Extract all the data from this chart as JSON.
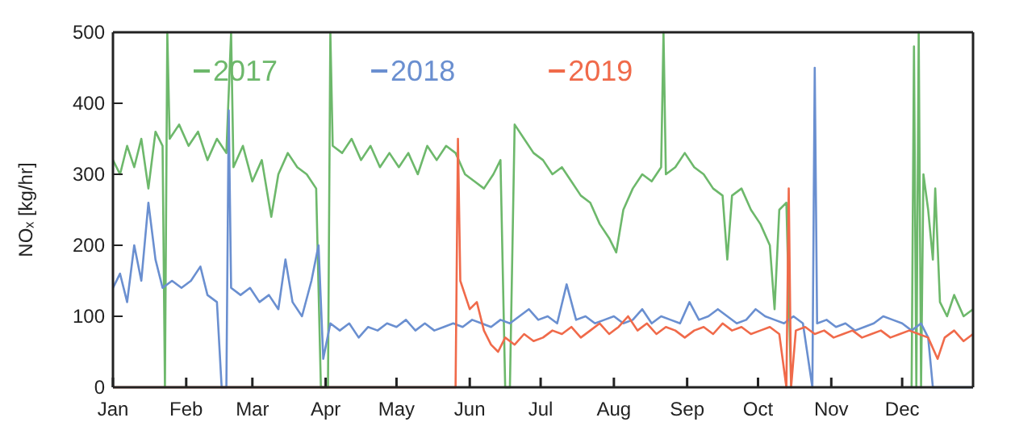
{
  "chart_data": {
    "type": "line",
    "ylabel": "NOₓ [kg/hr]",
    "xlim": [
      "--01-01",
      "--12-31"
    ],
    "xticks": [
      {
        "value": "--01-01",
        "label": "Jan"
      },
      {
        "value": "--02-01",
        "label": "Feb"
      },
      {
        "value": "--03-01",
        "label": "Mar"
      },
      {
        "value": "--04-01",
        "label": "Apr"
      },
      {
        "value": "--05-01",
        "label": "May"
      },
      {
        "value": "--06-01",
        "label": "Jun"
      },
      {
        "value": "--07-01",
        "label": "Jul"
      },
      {
        "value": "--08-01",
        "label": "Aug"
      },
      {
        "value": "--09-01",
        "label": "Sep"
      },
      {
        "value": "--10-01",
        "label": "Oct"
      },
      {
        "value": "--11-01",
        "label": "Nov"
      },
      {
        "value": "--12-01",
        "label": "Dec"
      }
    ],
    "ylim": [
      0,
      500
    ],
    "yticks": [
      0,
      100,
      200,
      300,
      400,
      500
    ],
    "legend": "top left",
    "grid": false,
    "line_style": "solid",
    "marker": "none",
    "series": [
      {
        "name": "2017",
        "color": "#6db86b",
        "x": [
          "--01-01",
          "--01-04",
          "--01-07",
          "--01-10",
          "--01-13",
          "--01-16",
          "--01-19",
          "--01-22",
          "--01-23",
          "--01-24",
          "--01-25",
          "--01-29",
          "--02-02",
          "--02-06",
          "--02-10",
          "--02-14",
          "--02-18",
          "--02-20",
          "--02-21",
          "--02-25",
          "--03-01",
          "--03-05",
          "--03-09",
          "--03-12",
          "--03-16",
          "--03-20",
          "--03-24",
          "--03-28",
          "--03-30",
          "--04-02",
          "--04-03",
          "--04-04",
          "--04-08",
          "--04-12",
          "--04-16",
          "--04-20",
          "--04-24",
          "--04-28",
          "--05-02",
          "--05-06",
          "--05-10",
          "--05-14",
          "--05-18",
          "--05-22",
          "--05-26",
          "--05-30",
          "--06-03",
          "--06-07",
          "--06-11",
          "--06-14",
          "--06-16",
          "--06-18",
          "--06-20",
          "--06-24",
          "--06-28",
          "--07-02",
          "--07-06",
          "--07-10",
          "--07-14",
          "--07-18",
          "--07-22",
          "--07-26",
          "--07-30",
          "--08-02",
          "--08-05",
          "--08-09",
          "--08-13",
          "--08-17",
          "--08-21",
          "--08-22",
          "--08-23",
          "--08-27",
          "--08-31",
          "--09-04",
          "--09-08",
          "--09-12",
          "--09-16",
          "--09-18",
          "--09-20",
          "--09-24",
          "--09-28",
          "--10-02",
          "--10-06",
          "--10-08",
          "--10-10",
          "--10-13",
          "--10-15",
          "--10-20",
          "--12-05",
          "--12-06",
          "--12-07",
          "--12-08",
          "--12-09",
          "--12-10",
          "--12-12",
          "--12-14",
          "--12-15",
          "--12-17",
          "--12-20",
          "--12-23",
          "--12-27",
          "--12-31"
        ],
        "values": [
          320,
          300,
          340,
          310,
          350,
          280,
          360,
          340,
          0,
          500,
          350,
          370,
          340,
          360,
          320,
          350,
          330,
          500,
          310,
          340,
          290,
          320,
          240,
          300,
          330,
          310,
          300,
          280,
          0,
          0,
          500,
          340,
          330,
          350,
          320,
          340,
          310,
          330,
          310,
          330,
          300,
          340,
          320,
          340,
          330,
          300,
          290,
          280,
          300,
          320,
          0,
          0,
          370,
          350,
          330,
          320,
          300,
          310,
          290,
          270,
          260,
          230,
          210,
          190,
          250,
          280,
          300,
          290,
          310,
          500,
          300,
          310,
          330,
          310,
          300,
          280,
          270,
          180,
          270,
          280,
          250,
          230,
          200,
          110,
          250,
          260,
          0,
          null,
          0,
          480,
          0,
          500,
          0,
          300,
          250,
          180,
          280,
          120,
          100,
          130,
          100,
          110
        ]
      },
      {
        "name": "2018",
        "color": "#6a8fd0",
        "x": [
          "--01-01",
          "--01-04",
          "--01-07",
          "--01-10",
          "--01-13",
          "--01-16",
          "--01-19",
          "--01-22",
          "--01-26",
          "--01-30",
          "--02-03",
          "--02-07",
          "--02-10",
          "--02-14",
          "--02-16",
          "--02-18",
          "--02-19",
          "--02-20",
          "--02-24",
          "--02-28",
          "--03-04",
          "--03-08",
          "--03-12",
          "--03-15",
          "--03-18",
          "--03-22",
          "--03-26",
          "--03-29",
          "--03-31",
          "--04-03",
          "--04-07",
          "--04-11",
          "--04-15",
          "--04-19",
          "--04-23",
          "--04-27",
          "--05-01",
          "--05-05",
          "--05-09",
          "--05-13",
          "--05-17",
          "--05-21",
          "--05-25",
          "--05-29",
          "--06-02",
          "--06-06",
          "--06-10",
          "--06-14",
          "--06-18",
          "--06-22",
          "--06-26",
          "--06-30",
          "--07-04",
          "--07-08",
          "--07-12",
          "--07-16",
          "--07-20",
          "--07-24",
          "--07-28",
          "--08-01",
          "--08-05",
          "--08-09",
          "--08-13",
          "--08-17",
          "--08-21",
          "--08-25",
          "--08-29",
          "--09-02",
          "--09-06",
          "--09-10",
          "--09-14",
          "--09-18",
          "--09-22",
          "--09-26",
          "--09-30",
          "--10-04",
          "--10-08",
          "--10-12",
          "--10-16",
          "--10-20",
          "--10-24",
          "--10-25",
          "--10-26",
          "--10-30",
          "--11-03",
          "--11-07",
          "--11-11",
          "--11-15",
          "--11-19",
          "--11-23",
          "--11-27",
          "--12-01",
          "--12-05",
          "--12-09",
          "--12-12",
          "--12-14",
          "--12-31"
        ],
        "values": [
          140,
          160,
          120,
          200,
          150,
          260,
          180,
          140,
          150,
          140,
          150,
          170,
          130,
          120,
          0,
          0,
          390,
          140,
          130,
          140,
          120,
          130,
          110,
          180,
          120,
          100,
          150,
          200,
          40,
          90,
          80,
          90,
          70,
          85,
          80,
          90,
          85,
          95,
          80,
          90,
          80,
          85,
          90,
          85,
          95,
          90,
          85,
          95,
          90,
          100,
          110,
          95,
          100,
          90,
          145,
          95,
          100,
          90,
          95,
          100,
          90,
          95,
          110,
          90,
          100,
          95,
          90,
          120,
          95,
          100,
          110,
          100,
          90,
          95,
          110,
          100,
          95,
          90,
          100,
          90,
          0,
          450,
          90,
          95,
          85,
          90,
          80,
          85,
          90,
          100,
          95,
          90,
          80,
          90,
          70,
          0,
          0
        ]
      },
      {
        "name": "2019",
        "color": "#f06a4a",
        "x": [
          "--01-01",
          "--05-26",
          "--05-27",
          "--05-28",
          "--06-01",
          "--06-04",
          "--06-07",
          "--06-10",
          "--06-13",
          "--06-16",
          "--06-20",
          "--06-24",
          "--06-28",
          "--07-02",
          "--07-06",
          "--07-10",
          "--07-14",
          "--07-18",
          "--07-22",
          "--07-26",
          "--07-30",
          "--08-03",
          "--08-07",
          "--08-11",
          "--08-15",
          "--08-19",
          "--08-23",
          "--08-27",
          "--08-31",
          "--09-04",
          "--09-08",
          "--09-12",
          "--09-16",
          "--09-20",
          "--09-24",
          "--09-28",
          "--10-02",
          "--10-06",
          "--10-10",
          "--10-13",
          "--10-14",
          "--10-15",
          "--10-17",
          "--10-21",
          "--10-25",
          "--10-29",
          "--11-02",
          "--11-06",
          "--11-10",
          "--11-14",
          "--11-18",
          "--11-22",
          "--11-26",
          "--11-30",
          "--12-04",
          "--12-08",
          "--12-12",
          "--12-16",
          "--12-19",
          "--12-23",
          "--12-27",
          "--12-31"
        ],
        "values": [
          0,
          0,
          350,
          150,
          110,
          120,
          80,
          60,
          50,
          70,
          60,
          75,
          65,
          70,
          80,
          75,
          85,
          70,
          80,
          90,
          75,
          85,
          100,
          80,
          90,
          75,
          85,
          80,
          70,
          80,
          85,
          75,
          90,
          80,
          85,
          75,
          80,
          85,
          75,
          0,
          280,
          0,
          80,
          85,
          75,
          80,
          70,
          75,
          80,
          70,
          75,
          80,
          70,
          75,
          80,
          75,
          70,
          40,
          70,
          80,
          65,
          75
        ]
      }
    ]
  }
}
